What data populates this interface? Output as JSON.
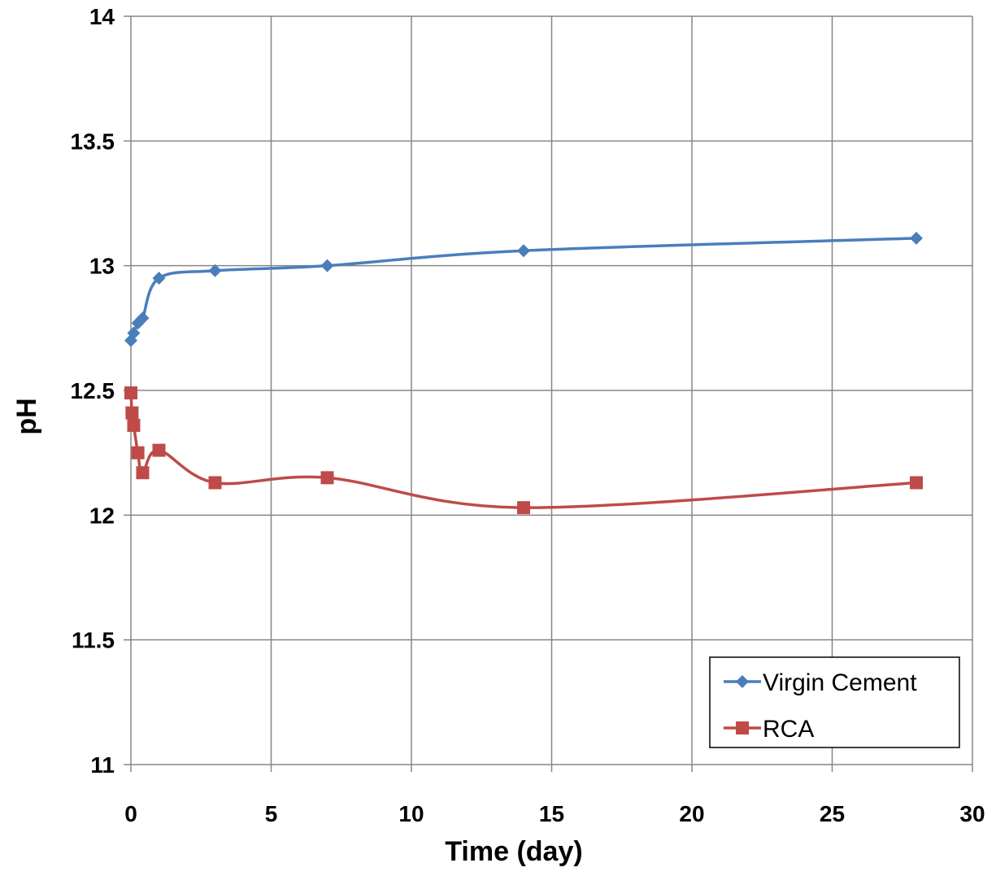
{
  "chart_data": {
    "type": "line",
    "title": "",
    "xlabel": "Time (day)",
    "ylabel": "pH",
    "xlim": [
      0,
      30
    ],
    "ylim": [
      11,
      14
    ],
    "xticks": [
      "0",
      "5",
      "10",
      "15",
      "20",
      "25",
      "30"
    ],
    "yticks": [
      "11",
      "11.5",
      "12",
      "12.5",
      "13",
      "13.5",
      "14"
    ],
    "grid": true,
    "legend_position": "bottom-right",
    "series": [
      {
        "name": "Virgin Cement",
        "color": "#4a7ebb",
        "marker": "diamond",
        "smooth": true,
        "x": [
          0,
          0.1,
          0.25,
          0.42,
          1,
          3,
          7,
          14,
          28
        ],
        "y": [
          12.7,
          12.73,
          12.77,
          12.79,
          12.95,
          12.98,
          13.0,
          13.06,
          13.11
        ]
      },
      {
        "name": "RCA",
        "color": "#be4b48",
        "marker": "square",
        "smooth": true,
        "x": [
          0,
          0.04,
          0.1,
          0.25,
          0.42,
          1,
          3,
          7,
          14,
          28
        ],
        "y": [
          12.49,
          12.41,
          12.36,
          12.25,
          12.17,
          12.26,
          12.13,
          12.15,
          12.03,
          12.13
        ]
      }
    ]
  }
}
